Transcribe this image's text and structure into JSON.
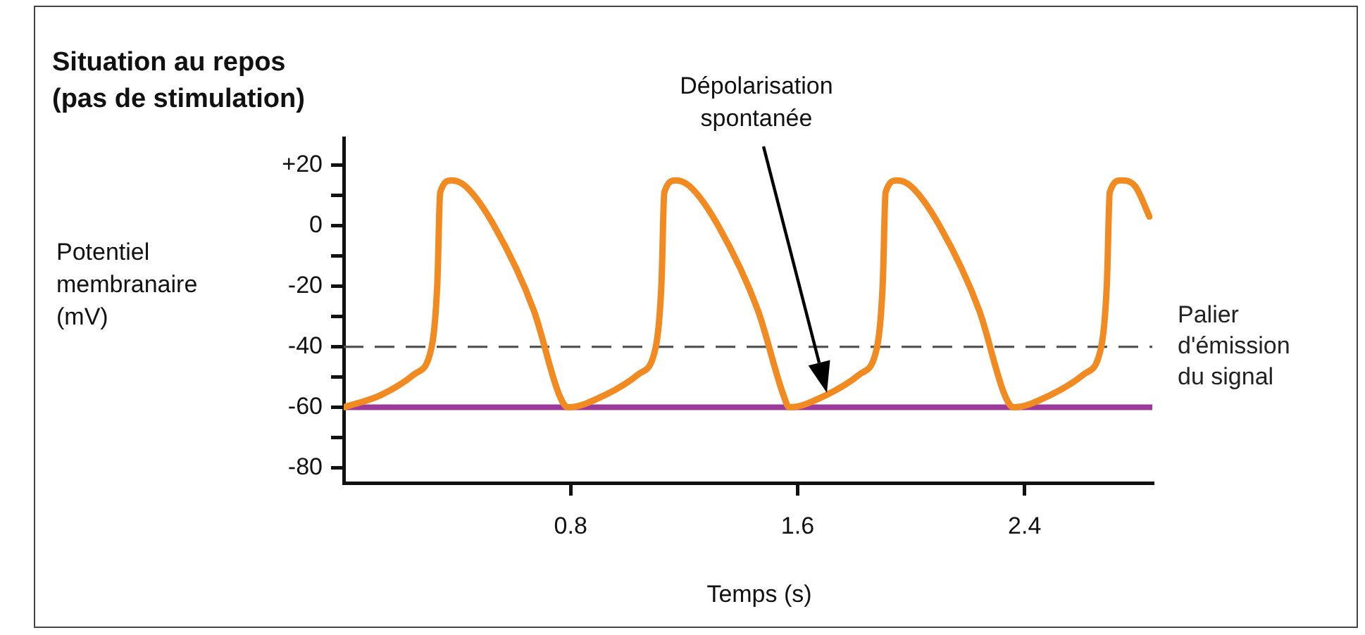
{
  "chart_data": {
    "type": "line",
    "title": "Situation au repos\n(pas de stimulation)",
    "xlabel": "Temps (s)",
    "ylabel": "Potentiel\nmembranaire\n(mV)",
    "series": [
      {
        "color": "#f28a22",
        "x": [
          0,
          0.13,
          0.25,
          0.31,
          0.33,
          0.34,
          0.38,
          0.43,
          0.53,
          0.67,
          0.76,
          0.79,
          0.92,
          1.04,
          1.1,
          1.12,
          1.13,
          1.17,
          1.22,
          1.32,
          1.46,
          1.55,
          1.57,
          1.7,
          1.82,
          1.88,
          1.9,
          1.91,
          1.95,
          2.0,
          2.1,
          2.24,
          2.33,
          2.36,
          2.49,
          2.61,
          2.67,
          2.69,
          2.7,
          2.74,
          2.79,
          2.84
        ],
        "values": [
          -60,
          -56,
          -49,
          -40,
          -19,
          11,
          15,
          13,
          0,
          -28,
          -56,
          -60,
          -56,
          -49,
          -40,
          -19,
          11,
          15,
          13,
          0,
          -28,
          -56,
          -60,
          -56,
          -49,
          -40,
          -19,
          11,
          15,
          13,
          0,
          -28,
          -56,
          -60,
          -56,
          -49,
          -40,
          -19,
          11,
          15,
          13,
          3
        ]
      }
    ],
    "xlim": [
      0,
      2.85
    ],
    "xticks": [
      0.8,
      1.6,
      2.4
    ],
    "ylim": [
      -85,
      29
    ],
    "yticks": [
      {
        "value": 20,
        "label": "+20"
      },
      {
        "value": 10,
        "label": null
      },
      0,
      {
        "value": -10,
        "label": null
      },
      -20,
      {
        "value": -30,
        "label": null
      },
      -40,
      {
        "value": -50,
        "label": null
      },
      -60,
      {
        "value": -70,
        "label": null
      },
      -80
    ],
    "ref_lines": [
      {
        "axis": "y",
        "value": -40,
        "label": "Palier\nd'émission\ndu signal",
        "color": "#555555",
        "line_style": "dashed"
      },
      {
        "axis": "y",
        "value": -60,
        "color": "#9b3a9b",
        "line_style": "solid"
      }
    ],
    "annotations": [
      "Dépolarisation\nspontanée"
    ],
    "grid": false,
    "legend": false,
    "marker": "none",
    "line_style": "solid"
  }
}
